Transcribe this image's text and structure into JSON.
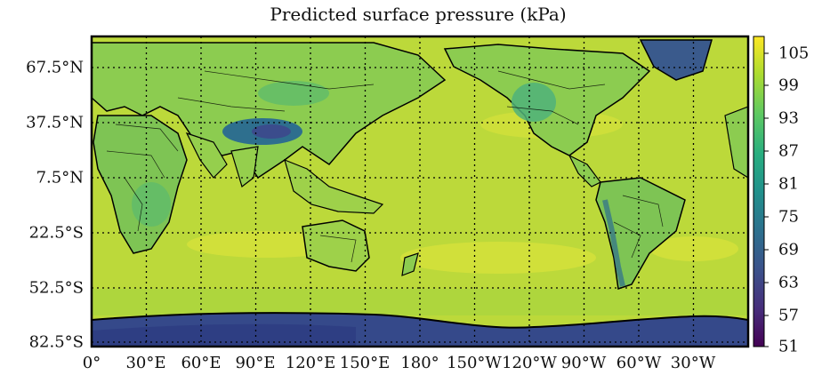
{
  "title": "Predicted surface pressure (kPa)",
  "latitude_labels": [
    "67.5°N",
    "37.5°N",
    "7.5°N",
    "22.5°S",
    "52.5°S",
    "82.5°S"
  ],
  "longitude_labels": [
    "0°",
    "30°E",
    "60°E",
    "90°E",
    "120°E",
    "150°E",
    "180°",
    "150°W",
    "120°W",
    "90°W",
    "60°W",
    "30°W"
  ],
  "colorbar": {
    "ticks": [
      "105",
      "99",
      "93",
      "87",
      "81",
      "75",
      "69",
      "63",
      "57",
      "51"
    ],
    "min": 51,
    "max": 107,
    "colormap": "viridis"
  },
  "colors": {
    "ocean_base": "#bcd93a",
    "ocean_high": "#dde33c",
    "land_base": "#8fcc4e",
    "highland": "#4fb27a",
    "plateau": "#2e6f8e",
    "plateau_core": "#3b4c8c",
    "antarctica": "#2c3e86",
    "greenland": "#3a5a8c",
    "coast": "#000000",
    "grid": "#000000"
  }
}
